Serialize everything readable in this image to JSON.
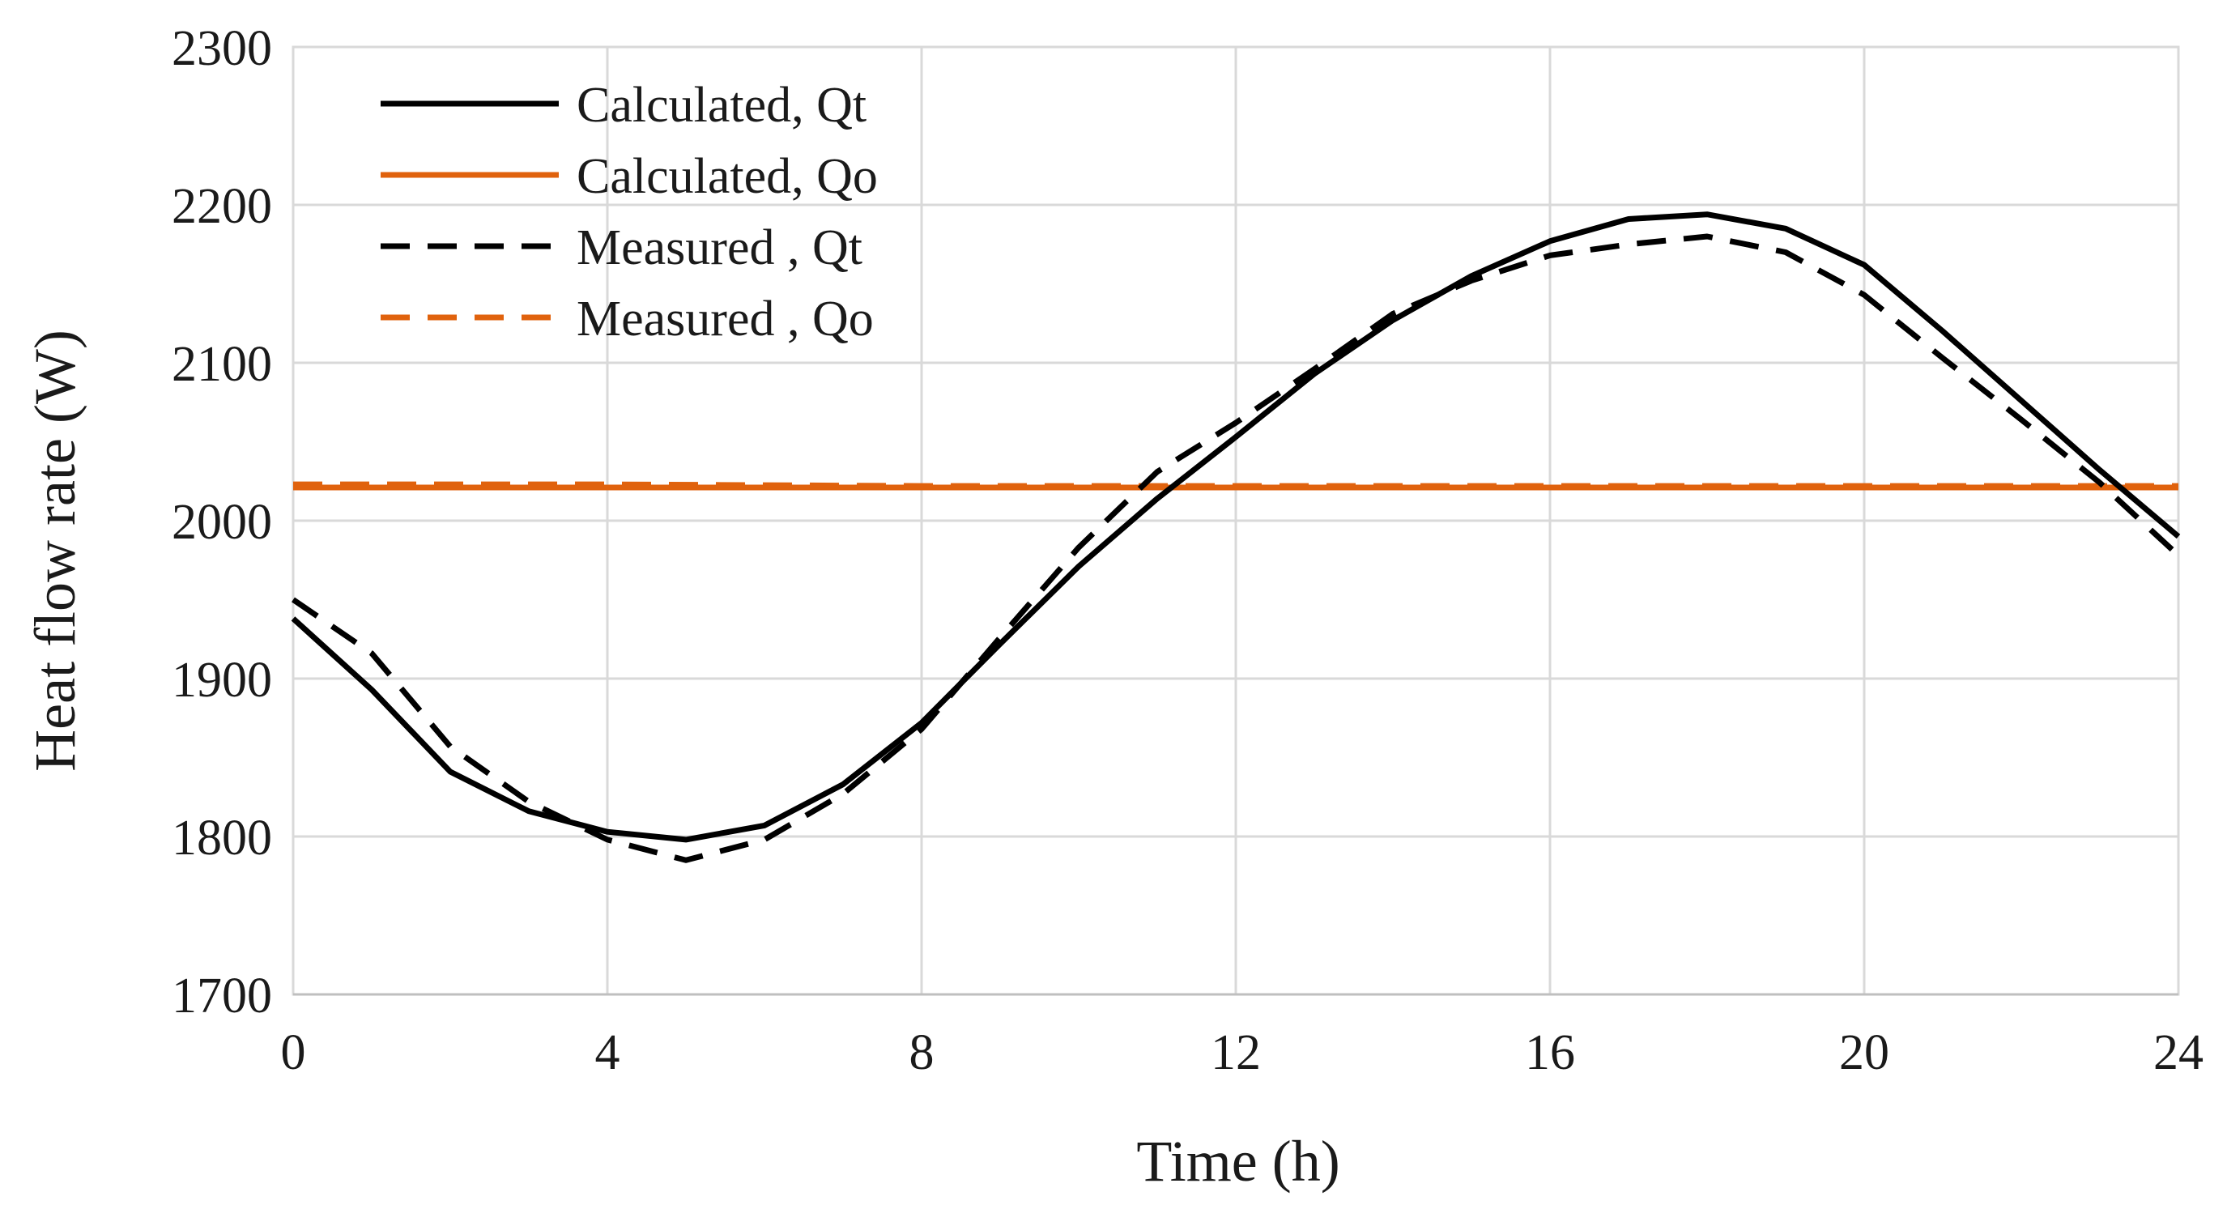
{
  "chart_data": {
    "type": "line",
    "title": "",
    "xlabel": "Time (h)",
    "ylabel": "Heat flow rate (W)",
    "xlim": [
      0,
      24
    ],
    "ylim": [
      1700,
      2300
    ],
    "xticks": [
      0,
      4,
      8,
      12,
      16,
      20,
      24
    ],
    "yticks": [
      1700,
      1800,
      1900,
      2000,
      2100,
      2200,
      2300
    ],
    "grid": true,
    "legend_position": "top-left",
    "series": [
      {
        "name": "Calculated, Qt",
        "color": "#000000",
        "dash": "solid",
        "x": [
          0,
          1,
          2,
          3,
          4,
          5,
          6,
          7,
          8,
          9,
          10,
          11,
          12,
          13,
          14,
          15,
          16,
          17,
          18,
          19,
          20,
          21,
          22,
          23,
          24
        ],
        "y": [
          1938,
          1893,
          1841,
          1816,
          1803,
          1798,
          1807,
          1833,
          1872,
          1922,
          1971,
          2014,
          2053,
          2093,
          2127,
          2155,
          2177,
          2191,
          2194,
          2185,
          2162,
          2120,
          2076,
          2032,
          1990
        ]
      },
      {
        "name": "Calculated, Qo",
        "color": "#e0620d",
        "dash": "solid",
        "x": [
          0,
          24
        ],
        "y": [
          2021,
          2021
        ]
      },
      {
        "name": "Measured , Qt",
        "color": "#000000",
        "dash": "dashed",
        "x": [
          0,
          1,
          2,
          3,
          4,
          5,
          6,
          7,
          8,
          9,
          10,
          11,
          12,
          13,
          14,
          15,
          16,
          17,
          18,
          19,
          20,
          21,
          22,
          23,
          24
        ],
        "y": [
          1950,
          1916,
          1857,
          1822,
          1798,
          1785,
          1798,
          1827,
          1868,
          1926,
          1983,
          2031,
          2062,
          2096,
          2131,
          2152,
          2168,
          2175,
          2180,
          2170,
          2143,
          2103,
          2064,
          2024,
          1978
        ]
      },
      {
        "name": "Measured , Qo",
        "color": "#e0620d",
        "dash": "dashed",
        "x": [
          0,
          4,
          8,
          12,
          16,
          20,
          24
        ],
        "y": [
          2023,
          2023,
          2022,
          2022,
          2022,
          2022,
          2022
        ]
      }
    ]
  }
}
